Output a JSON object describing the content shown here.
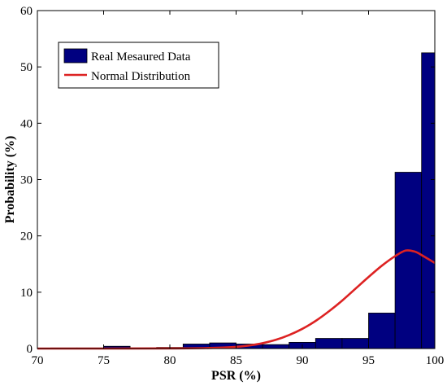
{
  "chart_data": {
    "type": "bar",
    "xlabel": "PSR (%)",
    "ylabel": "Probability (%)",
    "xlim": [
      70,
      100
    ],
    "ylim": [
      0,
      60
    ],
    "xticks": [
      70,
      75,
      80,
      85,
      90,
      95,
      100
    ],
    "yticks": [
      0,
      10,
      20,
      30,
      40,
      50,
      60
    ],
    "grid": false,
    "legend_position": "top-left",
    "bars": {
      "name": "Real Mesaured Data",
      "color": "#000080",
      "bin_edges": [
        71,
        73,
        75,
        77,
        79,
        81,
        83,
        85,
        87,
        89,
        91,
        93,
        95,
        97,
        99,
        100
      ],
      "values": [
        0.1,
        0.1,
        0.4,
        0.1,
        0.2,
        0.8,
        1.0,
        0.8,
        0.7,
        1.1,
        1.8,
        1.8,
        6.3,
        31.3,
        52.5
      ]
    },
    "series": [
      {
        "name": "Normal Distribution",
        "color": "#dd2222",
        "x": [
          70,
          75,
          80,
          83,
          85,
          86,
          87,
          88,
          89,
          90,
          91,
          92,
          93,
          94,
          95,
          96,
          97,
          97.8,
          98.5,
          99,
          99.5,
          100
        ],
        "y": [
          0,
          0,
          0.02,
          0.1,
          0.3,
          0.55,
          0.95,
          1.55,
          2.4,
          3.5,
          4.9,
          6.6,
          8.5,
          10.6,
          12.7,
          14.7,
          16.4,
          17.4,
          17.2,
          16.6,
          15.9,
          15.2
        ]
      }
    ]
  }
}
